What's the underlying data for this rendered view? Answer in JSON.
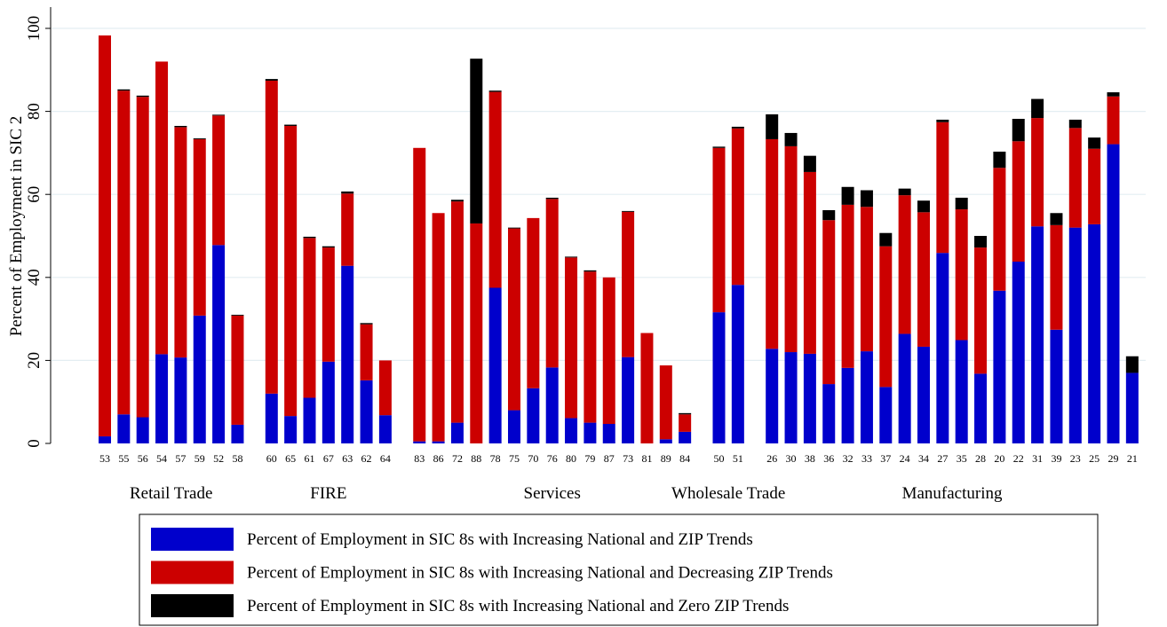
{
  "chart_data": {
    "type": "stacked_bar",
    "y_label": "Percent of Employment in SIC 2",
    "groups": [
      {
        "label": "Retail Trade",
        "categories": [
          "53",
          "55",
          "56",
          "54",
          "57",
          "59",
          "52",
          "58"
        ]
      },
      {
        "label": "FIRE",
        "categories": [
          "60",
          "65",
          "61",
          "67",
          "63",
          "62",
          "64"
        ]
      },
      {
        "label": "Services",
        "categories": [
          "83",
          "86",
          "72",
          "88",
          "78",
          "75",
          "70",
          "76",
          "80",
          "79",
          "87",
          "73",
          "81",
          "89",
          "84"
        ]
      },
      {
        "label": "Wholesale Trade",
        "categories": [
          "50",
          "51"
        ]
      },
      {
        "label": "Manufacturing",
        "categories": [
          "26",
          "30",
          "38",
          "36",
          "32",
          "33",
          "37",
          "24",
          "34",
          "27",
          "35",
          "28",
          "20",
          "22",
          "31",
          "39",
          "23",
          "25",
          "29",
          "21"
        ]
      }
    ],
    "series": [
      {
        "name": "Percent of Employment in SIC 8s with Increasing National and ZIP Trends",
        "color": "#0000cc",
        "values": [
          1.7,
          7,
          6.3,
          21.5,
          20.7,
          30.8,
          47.8,
          4.5,
          12,
          6.6,
          11,
          19.7,
          42.8,
          15.2,
          6.8,
          0.5,
          0.5,
          5,
          0,
          37.5,
          8,
          13.3,
          18.3,
          6.1,
          5,
          4.7,
          20.8,
          0,
          1,
          2.8,
          31.6,
          38.2,
          22.8,
          22,
          21.6,
          14.3,
          18.2,
          22.2,
          13.6,
          26.4,
          23.3,
          45.9,
          24.9,
          16.8,
          36.8,
          43.8,
          52.3,
          27.4,
          52,
          52.8,
          72.1,
          17
        ]
      },
      {
        "name": "Percent of Employment in SIC 8s with Increasing National and Decreasing ZIP Trends",
        "color": "#cc0000",
        "values": [
          96.6,
          78,
          77.2,
          70.5,
          55.5,
          42.5,
          31.2,
          26.3,
          75.4,
          69.9,
          38.5,
          27.5,
          17.4,
          13.5,
          13.2,
          70.7,
          55,
          53.3,
          53,
          47.2,
          43.8,
          41,
          40.6,
          38.7,
          36.4,
          35.3,
          35,
          26.6,
          17.8,
          4.2,
          39.6,
          37.7,
          50.5,
          49.6,
          43.8,
          39.5,
          39.3,
          34.8,
          33.9,
          33.4,
          32.4,
          31.5,
          31.5,
          30.4,
          29.6,
          29,
          26.1,
          25.2,
          24,
          18.2,
          11.5,
          0
        ]
      },
      {
        "name": "Percent of Employment in SIC 8s with Increasing National and Zero ZIP Trends",
        "color": "#000000",
        "values": [
          0,
          0.3,
          0.3,
          0,
          0.3,
          0.2,
          0.2,
          0.2,
          0.4,
          0.3,
          0.3,
          0.3,
          0.5,
          0.3,
          0,
          0,
          0,
          0.4,
          39.7,
          0.3,
          0.2,
          0,
          0.3,
          0.2,
          0.3,
          0,
          0.2,
          0,
          0,
          0.3,
          0.3,
          0.4,
          6,
          3.2,
          3.9,
          2.4,
          4.3,
          4,
          3.2,
          1.6,
          2.8,
          0.6,
          2.8,
          2.8,
          3.9,
          5.4,
          4.6,
          2.9,
          2,
          2.7,
          1,
          4
        ]
      }
    ],
    "ylim": [
      0,
      100
    ],
    "yticks": [
      0,
      20,
      40,
      60,
      80,
      100
    ],
    "grid": true
  }
}
